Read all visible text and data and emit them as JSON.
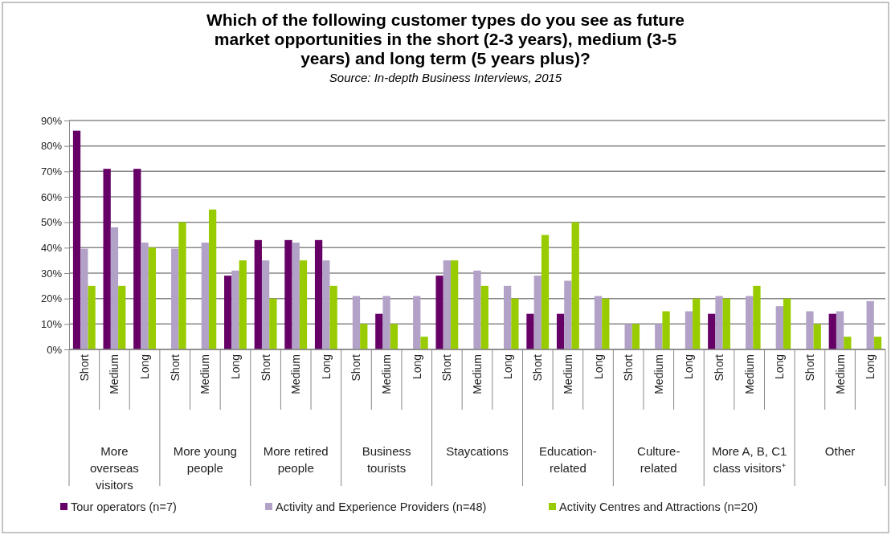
{
  "chart_data": {
    "type": "bar",
    "title": "Which of the following customer types do you see as future market opportunities in the short (2-3 years), medium (3-5 years) and long term (5 years plus)?",
    "subtitle": "Source: In-depth Business Interviews, 2015",
    "categories": [
      "Short",
      "Medium",
      "Long",
      "Short",
      "Medium",
      "Long",
      "Short",
      "Medium",
      "Long",
      "Short",
      "Medium",
      "Long",
      "Short",
      "Medium",
      "Long",
      "Short",
      "Medium",
      "Long",
      "Short",
      "Medium",
      "Long",
      "Short",
      "Medium",
      "Long",
      "Short",
      "Medium",
      "Long"
    ],
    "annotations": [
      "More overseas visitors",
      "More young people",
      "More retired people",
      "Business tourists",
      "Staycations",
      "Education-related",
      "Culture-related",
      "More A, B, C1 class visitors⁺",
      "Other"
    ],
    "series": [
      {
        "name": "Tour operators (n=7)",
        "color": "#660066",
        "values": [
          86,
          71,
          71,
          0,
          0,
          29,
          43,
          43,
          43,
          0,
          14,
          0,
          29,
          0,
          0,
          14,
          14,
          0,
          0,
          0,
          0,
          14,
          0,
          0,
          0,
          14,
          0
        ]
      },
      {
        "name": "Activity and Experience Providers (n=48)",
        "color": "#b3a2c7",
        "values": [
          39.6,
          48,
          42,
          39.6,
          42,
          31,
          35,
          42,
          35,
          21,
          21,
          21,
          35,
          31,
          25,
          29,
          27,
          21,
          10,
          10,
          15,
          21,
          21,
          17,
          15,
          15,
          19
        ]
      },
      {
        "name": "Activity Centres and Attractions (n=20)",
        "color": "#99cc00",
        "values": [
          25,
          25,
          40,
          50,
          55,
          35,
          20,
          35,
          25,
          10,
          10,
          5,
          35,
          25,
          20,
          45,
          50,
          20,
          10,
          15,
          20,
          20,
          25,
          20,
          10,
          5,
          5
        ]
      }
    ],
    "ylim": [
      0,
      90
    ],
    "yticks": [
      {
        "value": 0,
        "label": "0%"
      },
      {
        "value": 10,
        "label": "10%"
      },
      {
        "value": 20,
        "label": "20%"
      },
      {
        "value": 30,
        "label": "30%"
      },
      {
        "value": 40,
        "label": "40%"
      },
      {
        "value": 50,
        "label": "50%"
      },
      {
        "value": 60,
        "label": "60%"
      },
      {
        "value": 70,
        "label": "70%"
      },
      {
        "value": 80,
        "label": "80%"
      },
      {
        "value": 90,
        "label": "90%"
      }
    ],
    "grid": "y",
    "legend": "bottom"
  }
}
